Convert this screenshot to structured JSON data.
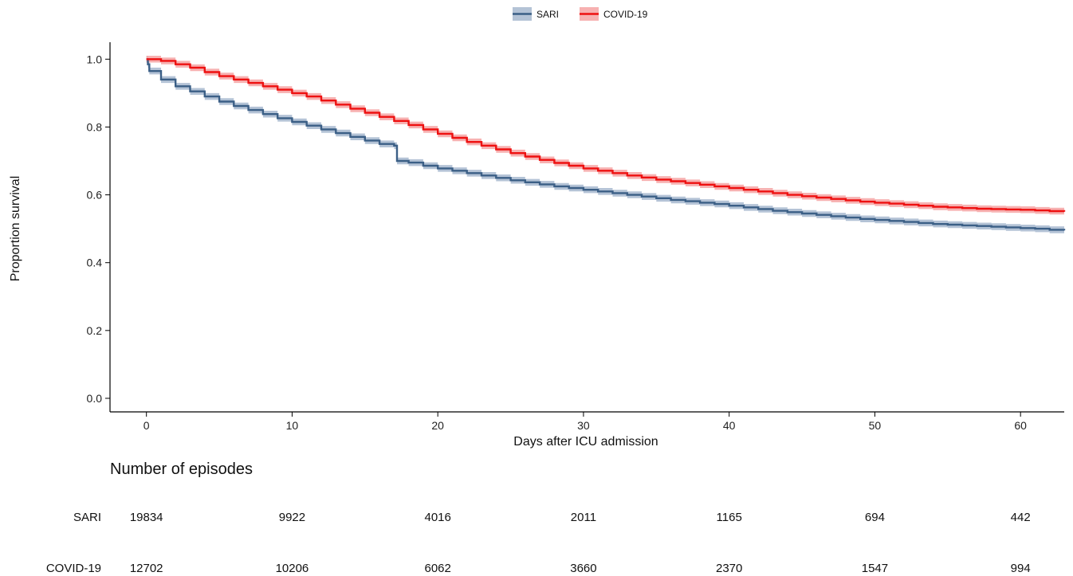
{
  "chart_data": {
    "type": "line",
    "xlabel": "Days after ICU admission",
    "ylabel": "Proportion survival",
    "xlim": [
      -2.5,
      63
    ],
    "ylim": [
      -0.04,
      1.05
    ],
    "xticks": [
      0,
      10,
      20,
      30,
      40,
      50,
      60
    ],
    "yticks": [
      0.0,
      0.2,
      0.4,
      0.6,
      0.8,
      1.0
    ],
    "ytick_labels": [
      "0.0",
      "0.2",
      "0.4",
      "0.6",
      "0.8",
      "1.0"
    ],
    "grid": false,
    "legend_position": "top",
    "series": [
      {
        "name": "SARI",
        "color": "#3b5f86",
        "band_color": "#a7b9cf",
        "x": [
          0,
          0.1,
          0.2,
          1,
          2,
          3,
          4,
          5,
          6,
          7,
          8,
          9,
          10,
          11,
          12,
          13,
          14,
          15,
          16,
          17,
          17.2,
          18,
          19,
          20,
          21,
          22,
          23,
          24,
          25,
          26,
          27,
          28,
          29,
          30,
          31,
          32,
          33,
          34,
          35,
          36,
          37,
          38,
          39,
          40,
          41,
          42,
          43,
          44,
          45,
          46,
          47,
          48,
          49,
          50,
          51,
          52,
          53,
          54,
          55,
          56,
          57,
          58,
          59,
          60,
          61,
          62,
          63
        ],
        "y": [
          1.0,
          0.985,
          0.965,
          0.94,
          0.92,
          0.905,
          0.89,
          0.875,
          0.862,
          0.85,
          0.838,
          0.826,
          0.815,
          0.804,
          0.793,
          0.782,
          0.771,
          0.76,
          0.75,
          0.745,
          0.7,
          0.695,
          0.686,
          0.678,
          0.671,
          0.664,
          0.657,
          0.65,
          0.643,
          0.637,
          0.631,
          0.625,
          0.62,
          0.615,
          0.61,
          0.605,
          0.6,
          0.595,
          0.59,
          0.585,
          0.581,
          0.577,
          0.573,
          0.568,
          0.563,
          0.558,
          0.553,
          0.549,
          0.545,
          0.541,
          0.537,
          0.533,
          0.529,
          0.526,
          0.523,
          0.52,
          0.517,
          0.514,
          0.512,
          0.51,
          0.508,
          0.506,
          0.504,
          0.502,
          0.5,
          0.497,
          0.495
        ]
      },
      {
        "name": "COVID-19",
        "color": "#ee1111",
        "band_color": "#f6a3a3",
        "x": [
          0,
          1,
          2,
          3,
          4,
          5,
          6,
          7,
          8,
          9,
          10,
          11,
          12,
          13,
          14,
          15,
          16,
          17,
          18,
          19,
          20,
          21,
          22,
          23,
          24,
          25,
          26,
          27,
          28,
          29,
          30,
          31,
          32,
          33,
          34,
          35,
          36,
          37,
          38,
          39,
          40,
          41,
          42,
          43,
          44,
          45,
          46,
          47,
          48,
          49,
          50,
          51,
          52,
          53,
          54,
          55,
          56,
          57,
          58,
          59,
          60,
          61,
          62,
          63
        ],
        "y": [
          1.0,
          0.995,
          0.985,
          0.975,
          0.962,
          0.95,
          0.94,
          0.93,
          0.92,
          0.91,
          0.9,
          0.89,
          0.878,
          0.866,
          0.854,
          0.842,
          0.83,
          0.818,
          0.806,
          0.793,
          0.78,
          0.768,
          0.756,
          0.745,
          0.734,
          0.723,
          0.713,
          0.703,
          0.694,
          0.686,
          0.678,
          0.671,
          0.664,
          0.657,
          0.651,
          0.645,
          0.64,
          0.635,
          0.63,
          0.625,
          0.62,
          0.615,
          0.61,
          0.605,
          0.6,
          0.596,
          0.592,
          0.588,
          0.584,
          0.58,
          0.577,
          0.574,
          0.571,
          0.568,
          0.565,
          0.563,
          0.561,
          0.559,
          0.558,
          0.557,
          0.556,
          0.554,
          0.552,
          0.55
        ]
      }
    ]
  },
  "risk_table": {
    "title": "Number of episodes",
    "rows": [
      {
        "label": "SARI",
        "values": [
          "19834",
          "9922",
          "4016",
          "2011",
          "1165",
          "694",
          "442"
        ]
      },
      {
        "label": "COVID-19",
        "values": [
          "12702",
          "10206",
          "6062",
          "3660",
          "2370",
          "1547",
          "994"
        ]
      }
    ]
  }
}
